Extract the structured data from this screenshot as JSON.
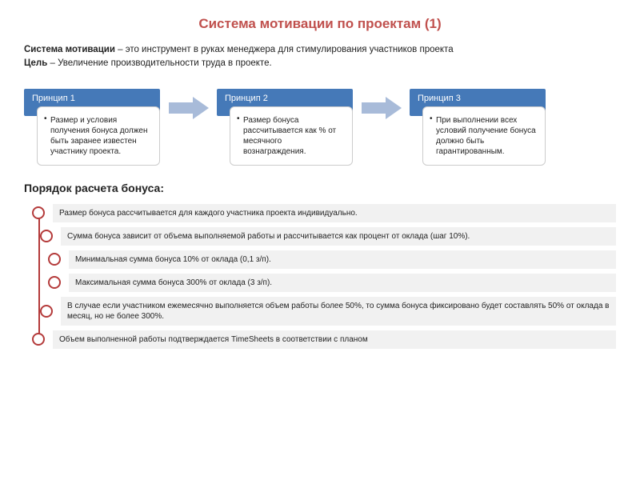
{
  "colors": {
    "title": "#c0504d",
    "principle_header_bg": "#4579b8",
    "arrow_fill": "#a8bbd9",
    "step_circle_border": "#b43a3a",
    "step_bg": "#f1f1f1"
  },
  "title": "Система мотивации по проектам (1)",
  "intro": {
    "line1_bold": "Система мотивации",
    "line1_rest": " – это инструмент в руках менеджера для стимулирования участников проекта",
    "line2_bold": "Цель",
    "line2_rest": " –  Увеличение производительности труда в проекте."
  },
  "principles": [
    {
      "header": "Принцип 1",
      "body": "Размер  и условия получения бонуса должен быть заранее известен участнику проекта."
    },
    {
      "header": "Принцип 2",
      "body": "Размер бонуса рассчитывается как % от месячного вознаграждения."
    },
    {
      "header": "Принцип 3",
      "body": "При выполнении всех условий получение бонуса должно быть гарантированным."
    }
  ],
  "subheading": "Порядок расчета бонуса:",
  "steps": [
    "Размер бонуса рассчитывается для каждого участника проекта индивидуально.",
    "Сумма бонуса зависит от объема выполняемой работы и рассчитывается как процент от оклада  (шаг 10%).",
    "Минимальная сумма бонуса 10% от оклада (0,1 з/п).",
    "Максимальная сумма бонуса  300% от оклада (3 з/п).",
    "В случае если участником ежемесячно выполняется объем работы более 50%, то сумма бонуса фиксировано будет составлять 50% от оклада в месяц, но не более 300%.",
    "Объем выполненной работы подтверждается TimeSheets в соответствии с планом"
  ],
  "step_indents": [
    0,
    1,
    2,
    2,
    1,
    0
  ]
}
